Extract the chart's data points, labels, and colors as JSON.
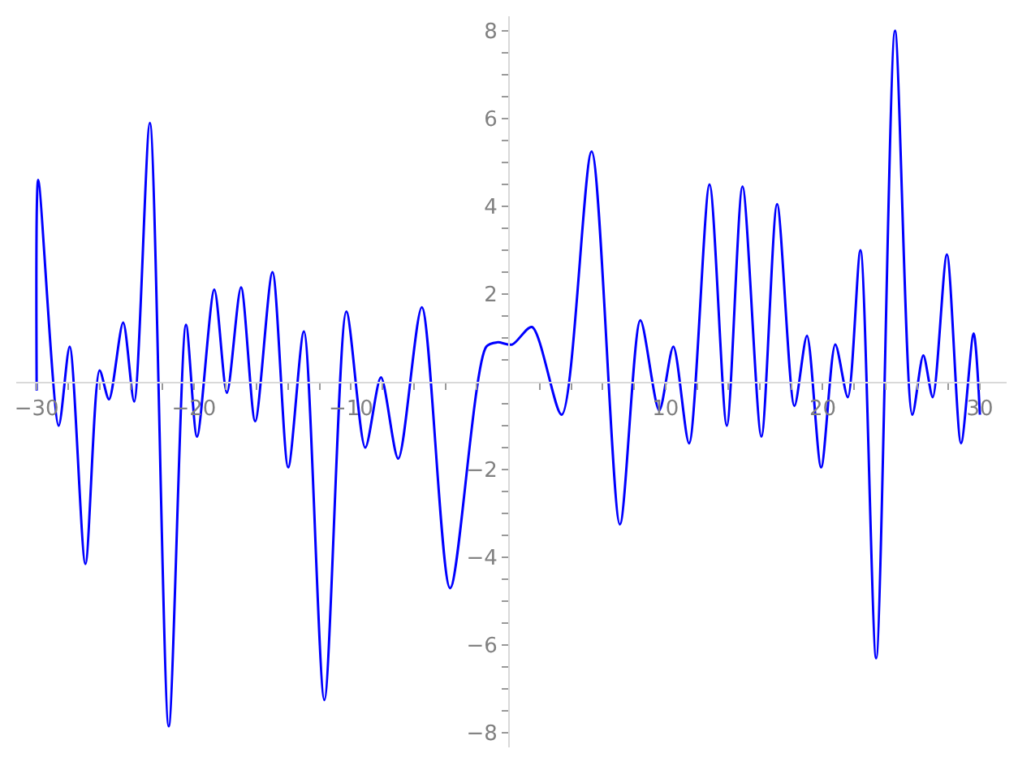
{
  "chart_data": {
    "type": "line",
    "xlim": [
      -31.3,
      31.7
    ],
    "ylim": [
      -8.33,
      8.33
    ],
    "xticks": [
      -30,
      {
        "value": -28,
        "label": null
      },
      {
        "value": -26,
        "label": null
      },
      {
        "value": -24,
        "label": null
      },
      {
        "value": -22,
        "label": null
      },
      -20,
      {
        "value": -18,
        "label": null
      },
      {
        "value": -16,
        "label": null
      },
      {
        "value": -14,
        "label": null
      },
      {
        "value": -12,
        "label": null
      },
      -10,
      {
        "value": -8,
        "label": null
      },
      {
        "value": -6,
        "label": null
      },
      {
        "value": -4,
        "label": null
      },
      {
        "value": -2,
        "label": null
      },
      {
        "value": 2,
        "label": null
      },
      {
        "value": 4,
        "label": null
      },
      {
        "value": 6,
        "label": null
      },
      {
        "value": 8,
        "label": null
      },
      10,
      {
        "value": 12,
        "label": null
      },
      {
        "value": 14,
        "label": null
      },
      {
        "value": 16,
        "label": null
      },
      {
        "value": 18,
        "label": null
      },
      20,
      {
        "value": 22,
        "label": null
      },
      {
        "value": 24,
        "label": null
      },
      {
        "value": 26,
        "label": null
      },
      {
        "value": 28,
        "label": null
      },
      30
    ],
    "yticks": [
      -8,
      {
        "value": -7.5,
        "label": null
      },
      {
        "value": -7,
        "label": null
      },
      {
        "value": -6.5,
        "label": null
      },
      -6,
      {
        "value": -5.5,
        "label": null
      },
      {
        "value": -5,
        "label": null
      },
      {
        "value": -4.5,
        "label": null
      },
      -4,
      {
        "value": -3.5,
        "label": null
      },
      {
        "value": -3,
        "label": null
      },
      {
        "value": -2.5,
        "label": null
      },
      -2,
      {
        "value": -1.5,
        "label": null
      },
      {
        "value": -1,
        "label": null
      },
      {
        "value": -0.5,
        "label": null
      },
      {
        "value": 0.5,
        "label": null
      },
      {
        "value": 1,
        "label": null
      },
      {
        "value": 1.5,
        "label": null
      },
      2,
      {
        "value": 2.5,
        "label": null
      },
      {
        "value": 3,
        "label": null
      },
      {
        "value": 3.5,
        "label": null
      },
      4,
      {
        "value": 4.5,
        "label": null
      },
      {
        "value": 5,
        "label": null
      },
      {
        "value": 5.5,
        "label": null
      },
      6,
      {
        "value": 6.5,
        "label": null
      },
      {
        "value": 7,
        "label": null
      },
      {
        "value": 7.5,
        "label": null
      },
      8
    ],
    "marker": "none",
    "line_style": "solid",
    "series": [
      {
        "color": "#0000ff",
        "x": [
          -30.0,
          -29.9,
          -28.6,
          -27.9,
          -26.9,
          -26.0,
          -25.4,
          -24.5,
          -23.8,
          -22.8,
          -21.6,
          -20.5,
          -19.8,
          -18.7,
          -17.9,
          -17.0,
          -16.1,
          -15.0,
          -14.0,
          -13.0,
          -11.7,
          -10.3,
          -9.1,
          -8.1,
          -7.0,
          -5.5,
          -3.7,
          -1.4,
          -0.7,
          0.25,
          1.5,
          3.4,
          5.3,
          7.1,
          8.4,
          9.6,
          10.5,
          11.5,
          12.8,
          13.9,
          14.9,
          16.1,
          17.1,
          18.2,
          19.0,
          19.9,
          20.8,
          21.6,
          22.4,
          23.4,
          24.6,
          25.7,
          26.4,
          27.0,
          27.9,
          28.8,
          29.6,
          30.0
        ],
        "values": [
          -0.2,
          4.6,
          -1.0,
          0.8,
          -4.15,
          0.26,
          -0.4,
          1.35,
          -0.45,
          5.9,
          -7.85,
          1.3,
          -1.25,
          2.1,
          -0.25,
          2.15,
          -0.9,
          2.5,
          -1.95,
          1.15,
          -7.25,
          1.6,
          -1.5,
          0.1,
          -1.75,
          1.7,
          -4.7,
          0.8,
          0.9,
          0.85,
          1.25,
          -0.75,
          5.25,
          -3.25,
          1.4,
          -0.65,
          0.8,
          -1.4,
          4.5,
          -1.0,
          4.45,
          -1.25,
          4.05,
          -0.55,
          1.05,
          -1.95,
          0.85,
          -0.35,
          3.0,
          -6.3,
          8.0,
          -0.75,
          0.6,
          -0.35,
          2.9,
          -1.4,
          1.1,
          -0.75
        ]
      }
    ]
  }
}
